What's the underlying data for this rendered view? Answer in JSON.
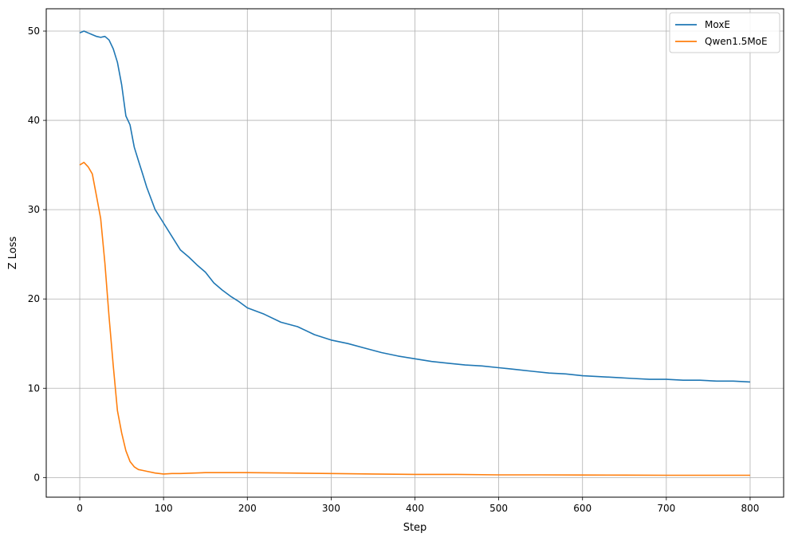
{
  "chart_data": {
    "type": "line",
    "title": "",
    "xlabel": "Step",
    "ylabel": "Z Loss",
    "xlim": [
      -40,
      840
    ],
    "ylim": [
      -2.2,
      52.5
    ],
    "xticks": [
      0,
      100,
      200,
      300,
      400,
      500,
      600,
      700,
      800
    ],
    "yticks": [
      0,
      10,
      20,
      30,
      40,
      50
    ],
    "grid": true,
    "legend_position": "top-right",
    "series": [
      {
        "name": "MoxE",
        "color": "#1f77b4",
        "x": [
          0,
          5,
          10,
          15,
          20,
          25,
          30,
          35,
          40,
          45,
          50,
          55,
          60,
          65,
          70,
          75,
          80,
          90,
          100,
          110,
          120,
          130,
          140,
          150,
          160,
          170,
          180,
          190,
          200,
          220,
          240,
          260,
          280,
          300,
          320,
          340,
          360,
          380,
          400,
          420,
          440,
          460,
          480,
          500,
          520,
          540,
          560,
          580,
          600,
          620,
          640,
          660,
          680,
          700,
          720,
          740,
          760,
          780,
          800
        ],
        "y": [
          49.8,
          50.0,
          49.8,
          49.6,
          49.4,
          49.3,
          49.4,
          49.0,
          48.0,
          46.5,
          44.0,
          40.5,
          39.5,
          37.0,
          35.5,
          34.0,
          32.5,
          30.0,
          28.5,
          27.0,
          25.5,
          24.7,
          23.8,
          23.0,
          21.8,
          21.0,
          20.3,
          19.7,
          19.0,
          18.3,
          17.4,
          16.9,
          16.0,
          15.4,
          15.0,
          14.5,
          14.0,
          13.6,
          13.3,
          13.0,
          12.8,
          12.6,
          12.5,
          12.3,
          12.1,
          11.9,
          11.7,
          11.6,
          11.4,
          11.3,
          11.2,
          11.1,
          11.0,
          11.0,
          10.9,
          10.9,
          10.8,
          10.8,
          10.7
        ]
      },
      {
        "name": "Qwen1.5MoE",
        "color": "#ff7f0e",
        "x": [
          0,
          5,
          10,
          15,
          20,
          25,
          30,
          35,
          40,
          45,
          50,
          55,
          60,
          65,
          70,
          75,
          80,
          90,
          100,
          110,
          120,
          150,
          200,
          250,
          300,
          350,
          400,
          450,
          500,
          550,
          600,
          650,
          700,
          750,
          800
        ],
        "y": [
          35.0,
          35.3,
          34.8,
          34.0,
          31.5,
          29.0,
          24.0,
          18.0,
          12.5,
          7.5,
          5.0,
          3.0,
          1.8,
          1.2,
          0.9,
          0.8,
          0.7,
          0.5,
          0.4,
          0.45,
          0.45,
          0.55,
          0.55,
          0.5,
          0.45,
          0.4,
          0.35,
          0.35,
          0.3,
          0.3,
          0.28,
          0.27,
          0.25,
          0.25,
          0.25
        ]
      }
    ]
  }
}
